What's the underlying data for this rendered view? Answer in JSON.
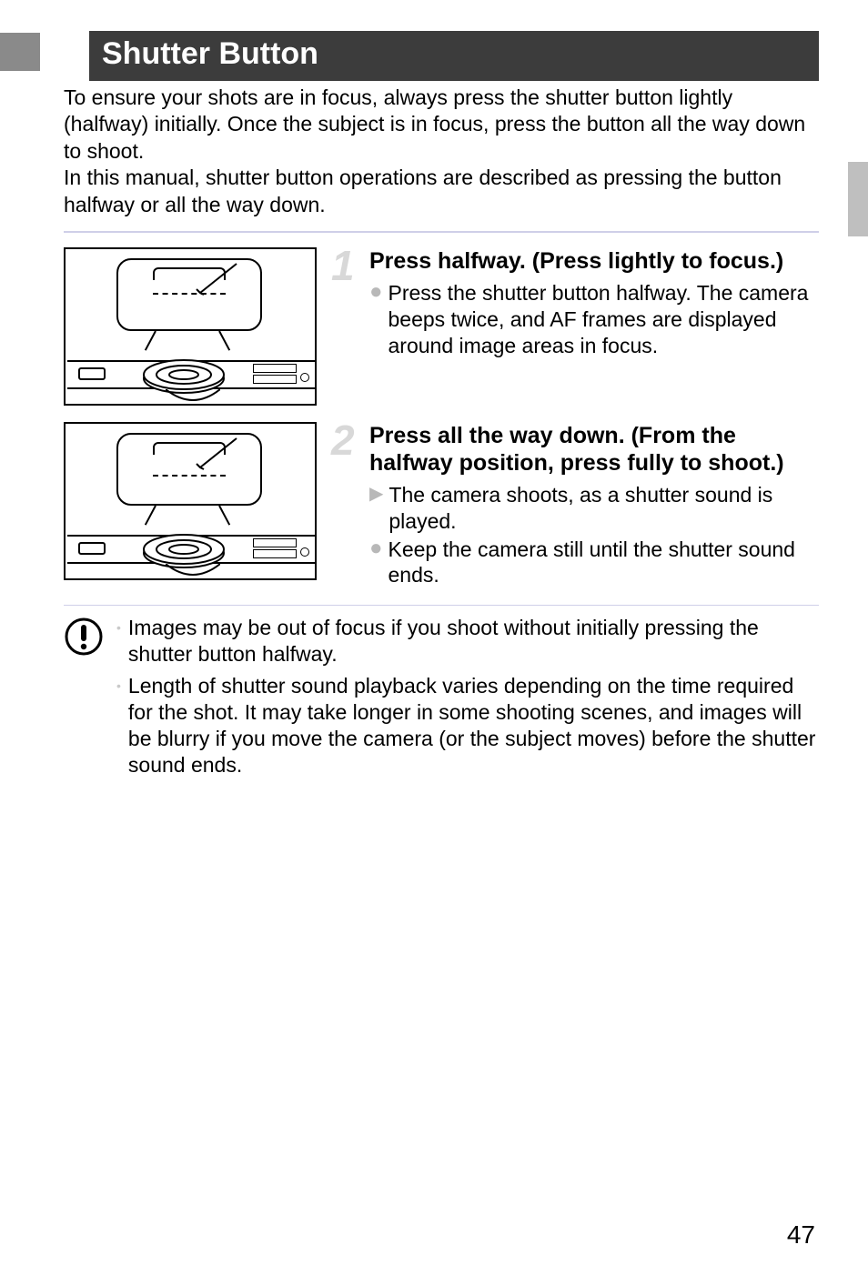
{
  "page": {
    "number": "47",
    "title": "Shutter Button",
    "intro": "To ensure your shots are in focus, always press the shutter button lightly (halfway) initially. Once the subject is in focus, press the button all the way down to shoot.\nIn this manual, shutter button operations are described as pressing the button halfway or all the way down.",
    "title_bg": "#3c3c3c",
    "title_color": "#ffffff",
    "accent_color": "#8a8a8a",
    "divider_color": "#cfcfe8",
    "step_num_color": "#d8d8d8",
    "bullet_color": "#b8b8b8",
    "body_font_size": 23
  },
  "steps": [
    {
      "num": "1",
      "heading": "Press halfway. (Press lightly to focus.)",
      "items": [
        {
          "marker": "dot",
          "text": "Press the shutter button halfway. The camera beeps twice, and AF frames are displayed around image areas in focus."
        }
      ],
      "illustration": {
        "press_depth": "half"
      }
    },
    {
      "num": "2",
      "heading": "Press all the way down. (From the halfway position, press fully to shoot.)",
      "items": [
        {
          "marker": "tri",
          "text": "The camera shoots, as a shutter sound is played."
        },
        {
          "marker": "dot",
          "text": "Keep the camera still until the shutter sound ends."
        }
      ],
      "illustration": {
        "press_depth": "full"
      }
    }
  ],
  "notes": [
    "Images may be out of focus if you shoot without initially pressing the shutter button halfway.",
    "Length of shutter sound playback varies depending on the time required for the shot. It may take longer in some shooting scenes, and images will be blurry if you move the camera (or the subject moves) before the shutter sound ends."
  ],
  "side_tab_color": "#bfbfbf"
}
